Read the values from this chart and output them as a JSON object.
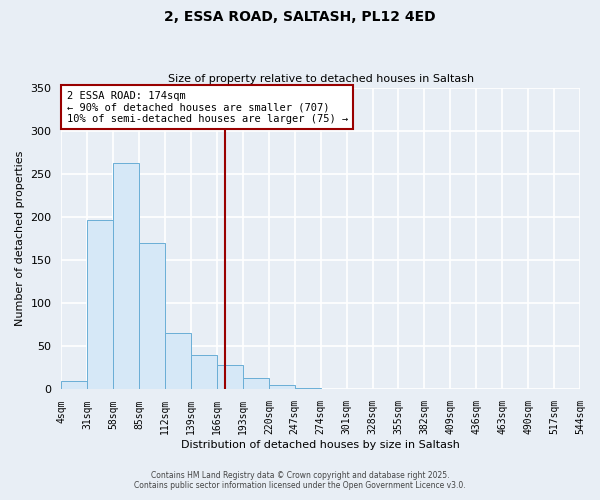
{
  "title": "2, ESSA ROAD, SALTASH, PL12 4ED",
  "subtitle": "Size of property relative to detached houses in Saltash",
  "xlabel": "Distribution of detached houses by size in Saltash",
  "ylabel": "Number of detached properties",
  "bin_edges": [
    4,
    31,
    58,
    85,
    112,
    139,
    166,
    193,
    220,
    247,
    274,
    301,
    328,
    355,
    382,
    409,
    436,
    463,
    490,
    517,
    544
  ],
  "bin_counts": [
    10,
    196,
    262,
    170,
    66,
    40,
    28,
    13,
    5,
    2,
    0,
    0,
    0,
    0,
    0,
    0,
    0,
    0,
    0,
    0
  ],
  "bar_facecolor": "#d6e8f7",
  "bar_edgecolor": "#6aaed6",
  "vline_x": 174,
  "vline_color": "#990000",
  "annotation_text": "2 ESSA ROAD: 174sqm\n← 90% of detached houses are smaller (707)\n10% of semi-detached houses are larger (75) →",
  "annotation_box_edgecolor": "#990000",
  "annotation_box_facecolor": "white",
  "ylim": [
    0,
    350
  ],
  "yticks": [
    0,
    50,
    100,
    150,
    200,
    250,
    300,
    350
  ],
  "xtick_labels": [
    "4sqm",
    "31sqm",
    "58sqm",
    "85sqm",
    "112sqm",
    "139sqm",
    "166sqm",
    "193sqm",
    "220sqm",
    "247sqm",
    "274sqm",
    "301sqm",
    "328sqm",
    "355sqm",
    "382sqm",
    "409sqm",
    "436sqm",
    "463sqm",
    "490sqm",
    "517sqm",
    "544sqm"
  ],
  "footer_line1": "Contains HM Land Registry data © Crown copyright and database right 2025.",
  "footer_line2": "Contains public sector information licensed under the Open Government Licence v3.0.",
  "bg_color": "#e8eef5",
  "plot_bg_color": "#e8eef5",
  "grid_color": "#ffffff",
  "title_fontsize": 10,
  "subtitle_fontsize": 8,
  "ylabel_fontsize": 8,
  "xlabel_fontsize": 8,
  "tick_fontsize": 7,
  "annot_fontsize": 7.5
}
